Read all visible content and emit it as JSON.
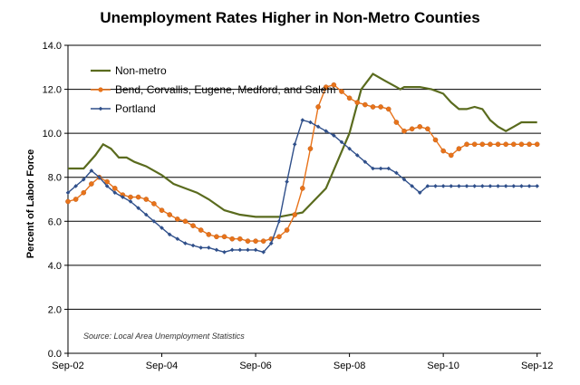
{
  "chart_data": {
    "type": "line",
    "title": "Unemployment Rates Higher in Non-Metro Counties",
    "ylabel": "Percent of Labor Force",
    "xlabel": "",
    "ylim": [
      0,
      14
    ],
    "ytick_values": [
      0,
      2,
      4,
      6,
      8,
      10,
      12,
      14
    ],
    "ytick_labels": [
      "0.0",
      "2.0",
      "4.0",
      "6.0",
      "8.0",
      "10.0",
      "12.0",
      "14.0"
    ],
    "xtick_values": [
      0,
      24,
      48,
      72,
      96,
      120
    ],
    "xtick_labels": [
      "Sep-02",
      "Sep-04",
      "Sep-06",
      "Sep-08",
      "Sep-10",
      "Sep-12"
    ],
    "x_unit": "months since Sep-02",
    "grid": "horizontal",
    "legend_position": "top-left",
    "source_note": "Source: Local Area Unemployment Statistics",
    "series": [
      {
        "name": "Non-metro",
        "color": "#5a6b1e",
        "marker": "none",
        "x": [
          0,
          4,
          7,
          9,
          11,
          13,
          15,
          17,
          20,
          22,
          24,
          27,
          30,
          33,
          36,
          40,
          44,
          48,
          54,
          60,
          66,
          72,
          75,
          78,
          81,
          84,
          85,
          86,
          87,
          90,
          93,
          96,
          98,
          100,
          102,
          104,
          106,
          108,
          110,
          112,
          114,
          116,
          118,
          119,
          120
        ],
        "values": [
          8.4,
          8.4,
          9.0,
          9.5,
          9.3,
          8.9,
          8.9,
          8.7,
          8.5,
          8.3,
          8.1,
          7.7,
          7.5,
          7.3,
          7.0,
          6.5,
          6.3,
          6.2,
          6.2,
          6.4,
          7.5,
          10.0,
          12.0,
          12.7,
          12.4,
          12.1,
          12.0,
          12.1,
          12.1,
          12.1,
          12.0,
          11.8,
          11.4,
          11.1,
          11.1,
          11.2,
          11.1,
          10.6,
          10.3,
          10.1,
          10.3,
          10.5,
          10.5,
          10.5,
          10.5
        ]
      },
      {
        "name": "Bend, Corvallis, Eugene, Medford, and Salem",
        "color": "#e8731a",
        "marker": "circle",
        "x": [
          0,
          2,
          4,
          6,
          8,
          10,
          12,
          14,
          16,
          18,
          20,
          22,
          24,
          26,
          28,
          30,
          32,
          34,
          36,
          38,
          40,
          42,
          44,
          46,
          48,
          50,
          52,
          54,
          56,
          58,
          60,
          62,
          64,
          66,
          68,
          70,
          72,
          74,
          76,
          78,
          80,
          82,
          84,
          86,
          88,
          90,
          92,
          94,
          96,
          98,
          100,
          102,
          104,
          106,
          108,
          110,
          112,
          114,
          116,
          118,
          120
        ],
        "values": [
          6.9,
          7.0,
          7.3,
          7.7,
          8.0,
          7.8,
          7.5,
          7.2,
          7.1,
          7.1,
          7.0,
          6.8,
          6.5,
          6.3,
          6.1,
          6.0,
          5.8,
          5.6,
          5.4,
          5.3,
          5.3,
          5.2,
          5.2,
          5.1,
          5.1,
          5.1,
          5.2,
          5.3,
          5.6,
          6.3,
          7.5,
          9.3,
          11.2,
          12.1,
          12.2,
          11.9,
          11.6,
          11.4,
          11.3,
          11.2,
          11.2,
          11.1,
          10.5,
          10.1,
          10.2,
          10.3,
          10.2,
          9.7,
          9.2,
          9.0,
          9.3,
          9.5,
          9.5,
          9.5,
          9.5,
          9.5,
          9.5,
          9.5,
          9.5,
          9.5,
          9.5
        ]
      },
      {
        "name": "Portland",
        "color": "#2f4f8a",
        "marker": "diamond",
        "x": [
          0,
          2,
          4,
          6,
          8,
          10,
          12,
          14,
          16,
          18,
          20,
          22,
          24,
          26,
          28,
          30,
          32,
          34,
          36,
          38,
          40,
          42,
          44,
          46,
          48,
          50,
          52,
          54,
          56,
          58,
          60,
          62,
          64,
          66,
          68,
          70,
          72,
          74,
          76,
          78,
          80,
          82,
          84,
          86,
          88,
          90,
          92,
          94,
          96,
          98,
          100,
          102,
          104,
          106,
          108,
          110,
          112,
          114,
          116,
          118,
          120
        ],
        "values": [
          7.3,
          7.6,
          7.9,
          8.3,
          8.0,
          7.6,
          7.3,
          7.1,
          6.9,
          6.6,
          6.3,
          6.0,
          5.7,
          5.4,
          5.2,
          5.0,
          4.9,
          4.8,
          4.8,
          4.7,
          4.6,
          4.7,
          4.7,
          4.7,
          4.7,
          4.6,
          5.0,
          6.0,
          7.8,
          9.5,
          10.6,
          10.5,
          10.3,
          10.1,
          9.9,
          9.6,
          9.3,
          9.0,
          8.7,
          8.4,
          8.4,
          8.4,
          8.2,
          7.9,
          7.6,
          7.3,
          7.6,
          7.6,
          7.6,
          7.6,
          7.6,
          7.6,
          7.6,
          7.6,
          7.6,
          7.6,
          7.6,
          7.6,
          7.6,
          7.6,
          7.6
        ]
      }
    ]
  }
}
